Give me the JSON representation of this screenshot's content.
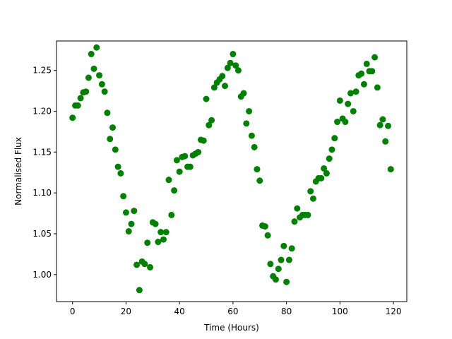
{
  "chart_data": {
    "type": "scatter",
    "title": "",
    "xlabel": "Time (Hours)",
    "ylabel": "Normalised Flux",
    "xlim": [
      -6,
      125
    ],
    "ylim": [
      0.967,
      1.286
    ],
    "xticks": [
      0,
      20,
      40,
      60,
      80,
      100,
      120
    ],
    "yticks": [
      1.0,
      1.05,
      1.1,
      1.15,
      1.2,
      1.25
    ],
    "xtick_labels": [
      "0",
      "20",
      "40",
      "60",
      "80",
      "100",
      "120"
    ],
    "ytick_labels": [
      "1.00",
      "1.05",
      "1.10",
      "1.15",
      "1.20",
      "1.25"
    ],
    "grid": false,
    "marker_color": "#008000",
    "series": [
      {
        "x": [
          0,
          1,
          2,
          3,
          4,
          5,
          6,
          7,
          8,
          9,
          10,
          11,
          12,
          13,
          14,
          15,
          16,
          17,
          18,
          19,
          20,
          21,
          22,
          23,
          24,
          25,
          26,
          27,
          28,
          29,
          30,
          31,
          32,
          33,
          34,
          35,
          36,
          37,
          38,
          39,
          40,
          41,
          42,
          43,
          44,
          45,
          46,
          47,
          48,
          49,
          50,
          51,
          52,
          53,
          54,
          55,
          56,
          57,
          58,
          59,
          60,
          61,
          62,
          63,
          64,
          65,
          66,
          67,
          68,
          69,
          70,
          71,
          72,
          73,
          74,
          75,
          76,
          77,
          78,
          79,
          80,
          81,
          82,
          83,
          84,
          85,
          86,
          87,
          88,
          89,
          90,
          91,
          92,
          93,
          94,
          95,
          96,
          97,
          98,
          99,
          100,
          101,
          102,
          103,
          104,
          105,
          106,
          107,
          108,
          109,
          110,
          111,
          112,
          113,
          114,
          115,
          116,
          117,
          118,
          119
        ],
        "y": [
          1.192,
          1.207,
          1.207,
          1.216,
          1.223,
          1.224,
          1.241,
          1.27,
          1.252,
          1.278,
          1.244,
          1.233,
          1.224,
          1.198,
          1.166,
          1.18,
          1.153,
          1.132,
          1.124,
          1.096,
          1.076,
          1.053,
          1.062,
          1.078,
          1.012,
          0.981,
          1.016,
          1.013,
          1.039,
          1.009,
          1.064,
          1.062,
          1.04,
          1.052,
          1.043,
          1.052,
          1.116,
          1.073,
          1.103,
          1.14,
          1.126,
          1.144,
          1.145,
          1.132,
          1.132,
          1.146,
          1.148,
          1.15,
          1.165,
          1.164,
          1.215,
          1.183,
          1.189,
          1.229,
          1.235,
          1.239,
          1.243,
          1.231,
          1.253,
          1.259,
          1.27,
          1.256,
          1.25,
          1.218,
          1.222,
          1.185,
          1.2,
          1.17,
          1.156,
          1.129,
          1.115,
          1.06,
          1.059,
          1.048,
          1.013,
          0.998,
          0.994,
          1.007,
          1.018,
          1.035,
          0.991,
          1.018,
          1.032,
          1.065,
          1.081,
          1.07,
          1.073,
          1.073,
          1.073,
          1.102,
          1.093,
          1.114,
          1.118,
          1.118,
          1.13,
          1.124,
          1.142,
          1.153,
          1.167,
          1.187,
          1.213,
          1.191,
          1.187,
          1.209,
          1.222,
          1.2,
          1.224,
          1.244,
          1.246,
          1.233,
          1.258,
          1.249,
          1.249,
          1.266,
          1.229,
          1.183,
          1.19,
          1.163,
          1.182,
          1.129
        ]
      }
    ]
  }
}
